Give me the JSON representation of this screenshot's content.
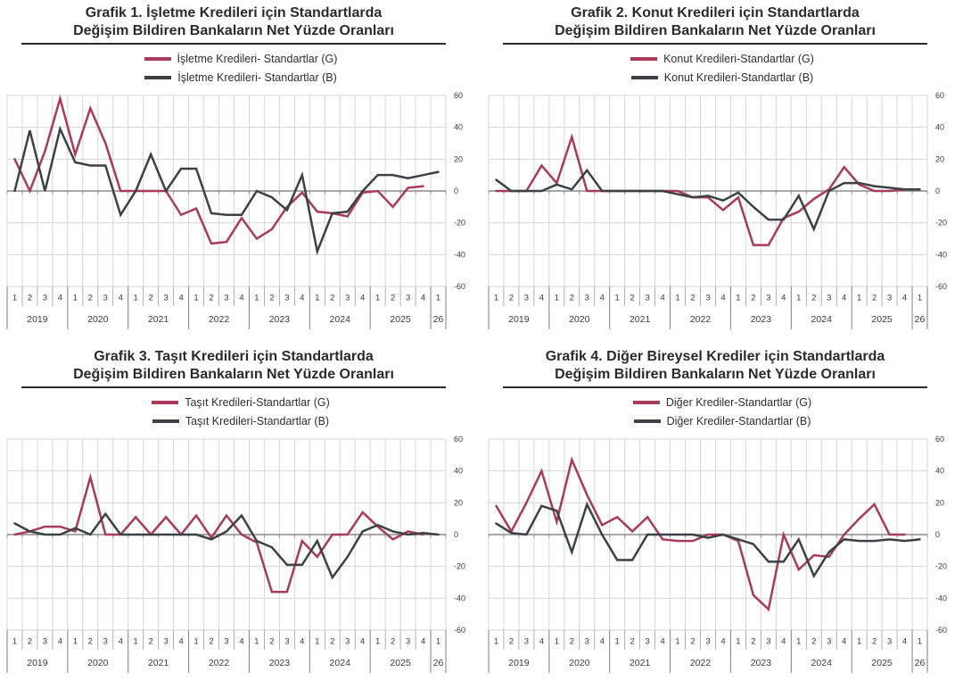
{
  "colors": {
    "g_line": "#a83a5a",
    "b_line": "#3b4147",
    "grid": "#d6d6d6",
    "zero_axis": "#8c8c8c",
    "quarter_separator": "#9b9b9b",
    "year_separator": "#7f7f7f",
    "axis_text": "#3a3a3a",
    "title_text": "#2b2b2b"
  },
  "axis": {
    "y_ticks": [
      60,
      40,
      20,
      0,
      -20,
      -40,
      -60
    ],
    "ylim": [
      -60,
      60
    ],
    "y_labels_side": "right",
    "quarters": [
      "1",
      "2",
      "3",
      "4",
      "1",
      "2",
      "3",
      "4",
      "1",
      "2",
      "3",
      "4",
      "1",
      "2",
      "3",
      "4",
      "1",
      "2",
      "3",
      "4",
      "1",
      "2",
      "3",
      "4",
      "1",
      "2",
      "3",
      "4",
      "1"
    ],
    "years": [
      {
        "label": "2019",
        "span": 4
      },
      {
        "label": "2020",
        "span": 4
      },
      {
        "label": "2021",
        "span": 4
      },
      {
        "label": "2022",
        "span": 4
      },
      {
        "label": "2023",
        "span": 4
      },
      {
        "label": "2024",
        "span": 4
      },
      {
        "label": "2025",
        "span": 4
      },
      {
        "label": "26",
        "span": 1
      }
    ],
    "periods": [
      "2019Q1",
      "2019Q2",
      "2019Q3",
      "2019Q4",
      "2020Q1",
      "2020Q2",
      "2020Q3",
      "2020Q4",
      "2021Q1",
      "2021Q2",
      "2021Q3",
      "2021Q4",
      "2022Q1",
      "2022Q2",
      "2022Q3",
      "2022Q4",
      "2023Q1",
      "2023Q2",
      "2023Q3",
      "2023Q4",
      "2024Q1",
      "2024Q2",
      "2024Q3",
      "2024Q4",
      "2025Q1",
      "2025Q2",
      "2025Q3",
      "2025Q4",
      "2026Q1"
    ]
  },
  "chart_data": [
    {
      "id": "grafik1",
      "type": "line",
      "title": "Grafik 1. İşletme Kredileri için Standartlarda Değişim Bildiren Bankaların Net Yüzde Oranları",
      "title_line1": "Grafik 1. İşletme Kredileri için Standartlarda",
      "title_line2": "Değişim Bildiren Bankaların Net Yüzde Oranları",
      "ylim": [
        -60,
        60
      ],
      "grid": true,
      "legend_position": "top",
      "series": [
        {
          "name": "İşletme Kredileri- Standartlar (G)",
          "color": "#a83a5a",
          "values": [
            20,
            0,
            25,
            58,
            23,
            52,
            30,
            0,
            0,
            0,
            0,
            -15,
            -11,
            -33,
            -32,
            -17,
            -30,
            -24,
            -10,
            -1,
            -13,
            -14,
            -16,
            -1,
            0,
            -10,
            2,
            3
          ]
        },
        {
          "name": "İşletme Kredileri- Standartlar (B)",
          "color": "#3b4147",
          "values": [
            0,
            38,
            0,
            39,
            18,
            16,
            16,
            -15,
            0,
            23,
            0,
            14,
            14,
            -14,
            -15,
            -15,
            0,
            -4,
            -12,
            10,
            -38,
            -14,
            -13,
            0,
            10,
            10,
            8,
            10,
            12
          ]
        }
      ]
    },
    {
      "id": "grafik2",
      "type": "line",
      "title": "Grafik 2. Konut Kredileri için Standartlarda Değişim Bildiren Bankaların Net Yüzde Oranları",
      "title_line1": "Grafik 2. Konut Kredileri için Standartlarda",
      "title_line2": "Değişim Bildiren Bankaların Net Yüzde Oranları",
      "ylim": [
        -60,
        60
      ],
      "grid": true,
      "legend_position": "top",
      "series": [
        {
          "name": "Konut Kredileri-Standartlar (G)",
          "color": "#a83a5a",
          "values": [
            0,
            0,
            0,
            16,
            5,
            34,
            0,
            0,
            0,
            0,
            0,
            0,
            0,
            -4,
            -4,
            -12,
            -4,
            -34,
            -34,
            -17,
            -13,
            -5,
            1,
            15,
            4,
            0,
            0,
            1
          ]
        },
        {
          "name": "Konut Kredileri-Standartlar (B)",
          "color": "#3b4147",
          "values": [
            7,
            0,
            0,
            0,
            4,
            1,
            13,
            0,
            0,
            0,
            0,
            0,
            -2,
            -4,
            -3,
            -6,
            -1,
            -10,
            -18,
            -18,
            -3,
            -24,
            0,
            5,
            5,
            3,
            2,
            1,
            1
          ]
        }
      ]
    },
    {
      "id": "grafik3",
      "type": "line",
      "title": "Grafik 3. Taşıt Kredileri için Standartlarda Değişim Bildiren Bankaların Net Yüzde Oranları",
      "title_line1": "Grafik 3. Taşıt Kredileri için Standartlarda",
      "title_line2": "Değişim Bildiren Bankaların Net Yüzde Oranları",
      "ylim": [
        -60,
        60
      ],
      "grid": true,
      "legend_position": "top",
      "series": [
        {
          "name": "Taşıt Kredileri-Standartlar (G)",
          "color": "#a83a5a",
          "values": [
            0,
            2,
            5,
            5,
            2,
            36,
            0,
            0,
            11,
            0,
            11,
            0,
            12,
            -2,
            12,
            0,
            -5,
            -36,
            -36,
            -4,
            -14,
            0,
            0,
            14,
            5,
            -3,
            2,
            0
          ]
        },
        {
          "name": "Taşıt Kredileri-Standartlar (B)",
          "color": "#3b4147",
          "values": [
            7,
            2,
            0,
            0,
            4,
            0,
            13,
            0,
            0,
            0,
            0,
            0,
            0,
            -3,
            2,
            12,
            -4,
            -8,
            -19,
            -19,
            -4,
            -27,
            -14,
            2,
            6,
            2,
            0,
            1,
            0
          ]
        }
      ]
    },
    {
      "id": "grafik4",
      "type": "line",
      "title": "Grafik 4. Diğer Bireysel Krediler için Standartlarda Değişim Bildiren Bankaların Net Yüzde Oranları",
      "title_line1": "Grafik 4. Diğer Bireysel Krediler için Standartlarda",
      "title_line2": "Değişim Bildiren Bankaların Net Yüzde Oranları",
      "ylim": [
        -60,
        60
      ],
      "grid": true,
      "legend_position": "top",
      "series": [
        {
          "name": "Diğer Krediler-Standartlar (G)",
          "color": "#a83a5a",
          "values": [
            18,
            2,
            20,
            40,
            8,
            47,
            25,
            6,
            11,
            2,
            11,
            -3,
            -4,
            -4,
            0,
            0,
            -4,
            -38,
            -47,
            0,
            -22,
            -13,
            -14,
            0,
            10,
            19,
            0,
            0
          ]
        },
        {
          "name": "Diğer Krediler-Standartlar (B)",
          "color": "#3b4147",
          "values": [
            7,
            1,
            0,
            18,
            15,
            -11,
            19,
            0,
            -16,
            -16,
            0,
            0,
            0,
            0,
            -2,
            0,
            -3,
            -6,
            -17,
            -17,
            -3,
            -26,
            -11,
            -3,
            -4,
            -4,
            -3,
            -4,
            -3
          ]
        }
      ]
    }
  ]
}
